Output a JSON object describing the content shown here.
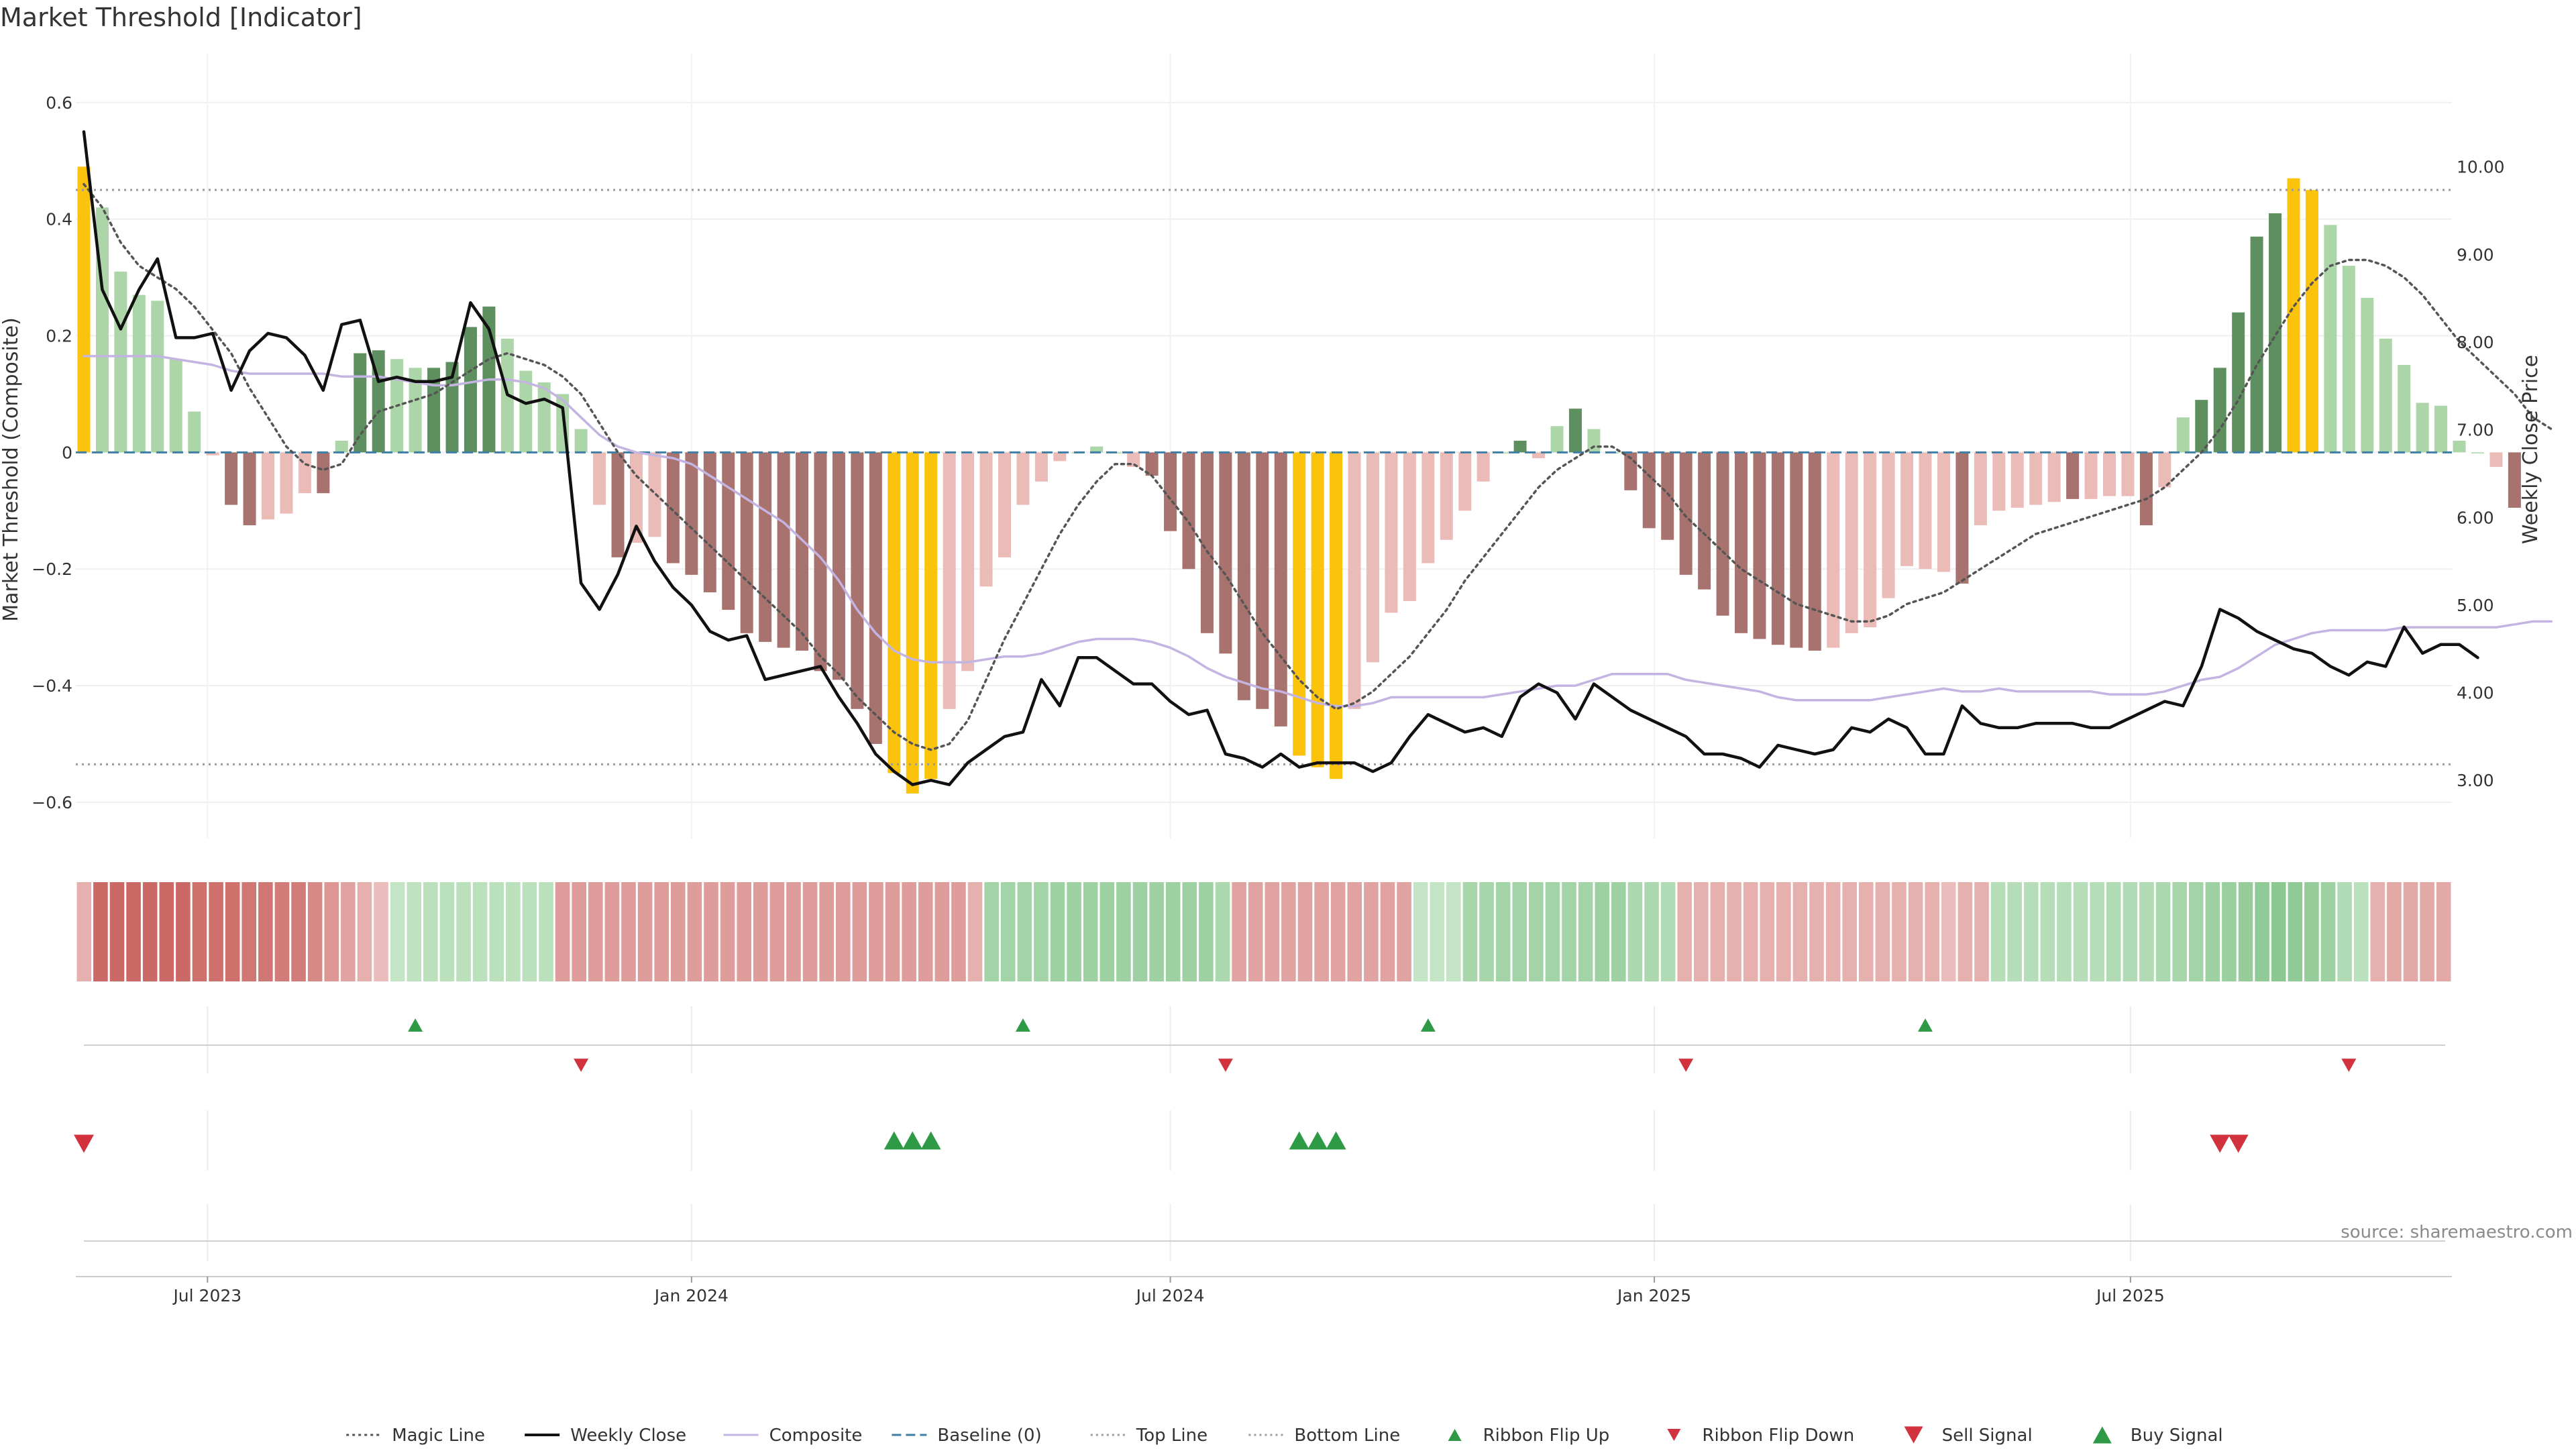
{
  "title": "Market Threshold [Indicator]",
  "source": "source: sharemaestro.com",
  "colors": {
    "bar_strong_up": "#5e8f5e",
    "bar_weak_up": "#acd6a8",
    "bar_strong_down": "#a8736f",
    "bar_weak_down": "#ebbbb8",
    "bar_extreme": "#fbc30c",
    "weekly_close": "#111111",
    "magic_line": "#555555",
    "composite": "#c3b4e1",
    "baseline": "#3f7fa6",
    "threshold_lines": "#9a9a9a",
    "signal_up": "#2e9a45",
    "signal_down": "#d2323d"
  },
  "chart_data": {
    "type": "bar",
    "x_start": "2023-05-15",
    "x_step_days": 7,
    "x_ticks": [
      "Jul 2023",
      "Jan 2024",
      "Jul 2024",
      "Jan 2025",
      "Jul 2025"
    ],
    "x_tick_dates": [
      "2023-07-01",
      "2024-01-01",
      "2024-07-01",
      "2025-01-01",
      "2025-07-01"
    ],
    "ylabel": "Market Threshold (Composite)",
    "y2label": "Weekly Close Price",
    "ylim": [
      -0.63,
      0.64
    ],
    "y2lim": [
      2.55,
      11.0
    ],
    "y_ticks": [
      -0.6,
      -0.4,
      -0.2,
      0,
      0.2,
      0.4,
      0.6
    ],
    "y_tick_labels": [
      "−0.6",
      "−0.4",
      "−0.2",
      "0",
      "0.2",
      "0.4",
      "0.6"
    ],
    "y2_ticks": [
      3,
      4,
      5,
      6,
      7,
      8,
      9,
      10
    ],
    "y2_tick_labels": [
      "3.00",
      "4.00",
      "5.00",
      "6.00",
      "7.00",
      "8.00",
      "9.00",
      "10.00"
    ],
    "top_line": 0.45,
    "bottom_line": -0.535,
    "baseline": 0,
    "grid": true,
    "bars": {
      "values": [
        0.49,
        0.42,
        0.31,
        0.27,
        0.26,
        0.16,
        0.07,
        -0.005,
        -0.09,
        -0.125,
        -0.115,
        -0.105,
        -0.07,
        -0.07,
        0.02,
        0.17,
        0.175,
        0.16,
        0.145,
        0.145,
        0.155,
        0.215,
        0.25,
        0.195,
        0.14,
        0.12,
        0.1,
        0.04,
        -0.09,
        -0.18,
        -0.155,
        -0.145,
        -0.19,
        -0.21,
        -0.24,
        -0.27,
        -0.31,
        -0.325,
        -0.335,
        -0.34,
        -0.375,
        -0.39,
        -0.44,
        -0.5,
        -0.55,
        -0.585,
        -0.56,
        -0.44,
        -0.375,
        -0.23,
        -0.18,
        -0.09,
        -0.05,
        -0.015,
        0,
        0.01,
        0,
        -0.025,
        -0.04,
        -0.135,
        -0.2,
        -0.31,
        -0.345,
        -0.425,
        -0.44,
        -0.47,
        -0.52,
        -0.54,
        -0.56,
        -0.44,
        -0.36,
        -0.275,
        -0.255,
        -0.19,
        -0.15,
        -0.1,
        -0.05,
        0,
        0.02,
        -0.01,
        0.045,
        0.075,
        0.04,
        0,
        -0.065,
        -0.13,
        -0.15,
        -0.21,
        -0.235,
        -0.28,
        -0.31,
        -0.32,
        -0.33,
        -0.335,
        -0.34,
        -0.335,
        -0.31,
        -0.3,
        -0.25,
        -0.195,
        -0.2,
        -0.205,
        -0.225,
        -0.125,
        -0.1,
        -0.095,
        -0.09,
        -0.085,
        -0.08,
        -0.08,
        -0.075,
        -0.075,
        -0.125,
        -0.06,
        0.06,
        0.09,
        0.145,
        0.24,
        0.37,
        0.41,
        0.47,
        0.45,
        0.39,
        0.32,
        0.265,
        0.195,
        0.15,
        0.085,
        0.08,
        0.02,
        0,
        -0.025,
        -0.095
      ],
      "colors": [
        "extreme",
        "weak_up",
        "weak_up",
        "weak_up",
        "weak_up",
        "weak_up",
        "weak_up",
        "weak_down",
        "strong_down",
        "strong_down",
        "weak_down",
        "weak_down",
        "weak_down",
        "strong_down",
        "weak_up",
        "strong_up",
        "strong_up",
        "weak_up",
        "weak_up",
        "strong_up",
        "strong_up",
        "strong_up",
        "strong_up",
        "weak_up",
        "weak_up",
        "weak_up",
        "weak_up",
        "weak_up",
        "weak_down",
        "strong_down",
        "weak_down",
        "weak_down",
        "strong_down",
        "strong_down",
        "strong_down",
        "strong_down",
        "strong_down",
        "strong_down",
        "strong_down",
        "strong_down",
        "strong_down",
        "strong_down",
        "strong_down",
        "strong_down",
        "extreme",
        "extreme",
        "extreme",
        "weak_down",
        "weak_down",
        "weak_down",
        "weak_down",
        "weak_down",
        "weak_down",
        "weak_down",
        "weak_up",
        "weak_up",
        "weak_up",
        "weak_down",
        "strong_down",
        "strong_down",
        "strong_down",
        "strong_down",
        "strong_down",
        "strong_down",
        "strong_down",
        "strong_down",
        "extreme",
        "extreme",
        "extreme",
        "weak_down",
        "weak_down",
        "weak_down",
        "weak_down",
        "weak_down",
        "weak_down",
        "weak_down",
        "weak_down",
        "weak_up",
        "strong_up",
        "weak_down",
        "weak_up",
        "strong_up",
        "weak_up",
        "weak_up",
        "strong_down",
        "strong_down",
        "strong_down",
        "strong_down",
        "strong_down",
        "strong_down",
        "strong_down",
        "strong_down",
        "strong_down",
        "strong_down",
        "strong_down",
        "weak_down",
        "weak_down",
        "weak_down",
        "weak_down",
        "weak_down",
        "weak_down",
        "weak_down",
        "strong_down",
        "weak_down",
        "weak_down",
        "weak_down",
        "weak_down",
        "weak_down",
        "strong_down",
        "weak_down",
        "weak_down",
        "weak_down",
        "strong_down",
        "weak_down",
        "weak_up",
        "strong_up",
        "strong_up",
        "strong_up",
        "strong_up",
        "strong_up",
        "extreme",
        "extreme",
        "weak_up",
        "weak_up",
        "weak_up",
        "weak_up",
        "weak_up",
        "weak_up",
        "weak_up",
        "weak_up",
        "weak_up",
        "weak_down",
        "strong_down"
      ]
    },
    "series": [
      {
        "name": "Weekly Close",
        "axis": "right",
        "style": "solid",
        "values": [
          10.4,
          8.6,
          8.15,
          8.6,
          8.95,
          8.05,
          8.05,
          8.1,
          7.45,
          7.9,
          8.1,
          8.05,
          7.85,
          7.45,
          8.2,
          8.25,
          7.55,
          7.6,
          7.55,
          7.55,
          7.6,
          8.45,
          8.15,
          7.4,
          7.3,
          7.35,
          7.25,
          5.25,
          4.95,
          5.35,
          5.9,
          5.5,
          5.2,
          5.0,
          4.7,
          4.6,
          4.65,
          4.15,
          4.2,
          4.25,
          4.3,
          3.95,
          3.65,
          3.3,
          3.1,
          2.95,
          3.0,
          2.95,
          3.2,
          3.35,
          3.5,
          3.55,
          4.15,
          3.85,
          4.4,
          4.4,
          4.25,
          4.1,
          4.1,
          3.9,
          3.75,
          3.8,
          3.3,
          3.25,
          3.15,
          3.3,
          3.15,
          3.2,
          3.2,
          3.2,
          3.1,
          3.2,
          3.5,
          3.75,
          3.65,
          3.55,
          3.6,
          3.5,
          3.95,
          4.1,
          4.0,
          3.7,
          4.1,
          3.95,
          3.8,
          3.7,
          3.6,
          3.5,
          3.3,
          3.3,
          3.25,
          3.15,
          3.4,
          3.35,
          3.3,
          3.35,
          3.6,
          3.55,
          3.7,
          3.6,
          3.3,
          3.3,
          3.85,
          3.65,
          3.6,
          3.6,
          3.65,
          3.65,
          3.65,
          3.6,
          3.6,
          3.7,
          3.8,
          3.9,
          3.85,
          4.3,
          4.95,
          4.85,
          4.7,
          4.6,
          4.5,
          4.45,
          4.3,
          4.2,
          4.35,
          4.3,
          4.75,
          4.45,
          4.55,
          4.55,
          4.4
        ]
      },
      {
        "name": "Magic Line",
        "axis": "left",
        "style": "dotted",
        "values": [
          0.46,
          0.42,
          0.36,
          0.32,
          0.3,
          0.28,
          0.25,
          0.21,
          0.17,
          0.11,
          0.06,
          0.01,
          -0.02,
          -0.03,
          -0.02,
          0.03,
          0.07,
          0.08,
          0.09,
          0.1,
          0.12,
          0.14,
          0.16,
          0.17,
          0.16,
          0.15,
          0.13,
          0.1,
          0.05,
          0.0,
          -0.04,
          -0.07,
          -0.1,
          -0.13,
          -0.16,
          -0.19,
          -0.22,
          -0.25,
          -0.28,
          -0.31,
          -0.35,
          -0.38,
          -0.42,
          -0.45,
          -0.48,
          -0.5,
          -0.51,
          -0.5,
          -0.46,
          -0.39,
          -0.32,
          -0.26,
          -0.2,
          -0.14,
          -0.09,
          -0.05,
          -0.02,
          -0.02,
          -0.04,
          -0.08,
          -0.12,
          -0.17,
          -0.21,
          -0.26,
          -0.31,
          -0.35,
          -0.39,
          -0.42,
          -0.44,
          -0.43,
          -0.41,
          -0.38,
          -0.35,
          -0.31,
          -0.27,
          -0.22,
          -0.18,
          -0.14,
          -0.1,
          -0.06,
          -0.03,
          -0.01,
          0.01,
          0.01,
          -0.01,
          -0.04,
          -0.07,
          -0.11,
          -0.14,
          -0.17,
          -0.2,
          -0.22,
          -0.24,
          -0.26,
          -0.27,
          -0.28,
          -0.29,
          -0.29,
          -0.28,
          -0.26,
          -0.25,
          -0.24,
          -0.22,
          -0.2,
          -0.18,
          -0.16,
          -0.14,
          -0.13,
          -0.12,
          -0.11,
          -0.1,
          -0.09,
          -0.08,
          -0.06,
          -0.03,
          0.0,
          0.04,
          0.09,
          0.15,
          0.2,
          0.25,
          0.29,
          0.32,
          0.33,
          0.33,
          0.32,
          0.3,
          0.27,
          0.23,
          0.19,
          0.16,
          0.13,
          0.1,
          0.06,
          0.04
        ]
      },
      {
        "name": "Composite",
        "axis": "left",
        "style": "solid",
        "values": [
          0.165,
          0.165,
          0.165,
          0.165,
          0.165,
          0.16,
          0.155,
          0.15,
          0.14,
          0.135,
          0.135,
          0.135,
          0.135,
          0.135,
          0.13,
          0.13,
          0.13,
          0.125,
          0.12,
          0.115,
          0.115,
          0.12,
          0.125,
          0.125,
          0.12,
          0.11,
          0.09,
          0.06,
          0.03,
          0.01,
          0.0,
          -0.005,
          -0.01,
          -0.02,
          -0.04,
          -0.06,
          -0.08,
          -0.1,
          -0.12,
          -0.15,
          -0.18,
          -0.22,
          -0.27,
          -0.31,
          -0.34,
          -0.355,
          -0.36,
          -0.36,
          -0.36,
          -0.355,
          -0.35,
          -0.35,
          -0.345,
          -0.335,
          -0.325,
          -0.32,
          -0.32,
          -0.32,
          -0.325,
          -0.335,
          -0.35,
          -0.37,
          -0.385,
          -0.395,
          -0.405,
          -0.41,
          -0.42,
          -0.43,
          -0.435,
          -0.435,
          -0.43,
          -0.42,
          -0.42,
          -0.42,
          -0.42,
          -0.42,
          -0.42,
          -0.415,
          -0.41,
          -0.405,
          -0.4,
          -0.4,
          -0.39,
          -0.38,
          -0.38,
          -0.38,
          -0.38,
          -0.39,
          -0.395,
          -0.4,
          -0.405,
          -0.41,
          -0.42,
          -0.425,
          -0.425,
          -0.425,
          -0.425,
          -0.425,
          -0.42,
          -0.415,
          -0.41,
          -0.405,
          -0.41,
          -0.41,
          -0.405,
          -0.41,
          -0.41,
          -0.41,
          -0.41,
          -0.41,
          -0.415,
          -0.415,
          -0.415,
          -0.41,
          -0.4,
          -0.39,
          -0.385,
          -0.37,
          -0.35,
          -0.33,
          -0.32,
          -0.31,
          -0.305,
          -0.305,
          -0.305,
          -0.305,
          -0.3,
          -0.3,
          -0.3,
          -0.3,
          -0.3,
          -0.3,
          -0.295,
          -0.29,
          -0.29
        ]
      }
    ],
    "ribbon": {
      "values": [
        -0.3,
        -0.85,
        -0.85,
        -0.85,
        -0.85,
        -0.85,
        -0.85,
        -0.8,
        -0.8,
        -0.8,
        -0.75,
        -0.75,
        -0.7,
        -0.7,
        -0.6,
        -0.5,
        -0.4,
        -0.3,
        -0.2,
        0.2,
        0.25,
        0.3,
        0.3,
        0.3,
        0.3,
        0.3,
        0.3,
        0.3,
        0.3,
        -0.45,
        -0.45,
        -0.45,
        -0.45,
        -0.45,
        -0.45,
        -0.45,
        -0.45,
        -0.45,
        -0.45,
        -0.45,
        -0.45,
        -0.45,
        -0.45,
        -0.45,
        -0.45,
        -0.45,
        -0.45,
        -0.45,
        -0.45,
        -0.45,
        -0.45,
        -0.45,
        -0.45,
        -0.45,
        -0.3,
        0.55,
        0.55,
        0.55,
        0.55,
        0.6,
        0.6,
        0.6,
        0.6,
        0.6,
        0.6,
        0.6,
        0.6,
        0.6,
        0.6,
        0.45,
        -0.4,
        -0.4,
        -0.4,
        -0.4,
        -0.4,
        -0.4,
        -0.4,
        -0.4,
        -0.4,
        -0.4,
        -0.4,
        0.2,
        0.2,
        0.2,
        0.5,
        0.5,
        0.55,
        0.55,
        0.55,
        0.55,
        0.55,
        0.55,
        0.6,
        0.6,
        0.45,
        0.45,
        0.4,
        -0.3,
        -0.3,
        -0.3,
        -0.3,
        -0.3,
        -0.3,
        -0.3,
        -0.3,
        -0.3,
        -0.3,
        -0.3,
        -0.3,
        -0.3,
        -0.3,
        -0.3,
        -0.3,
        -0.2,
        -0.3,
        -0.3,
        0.35,
        0.35,
        0.35,
        0.35,
        0.35,
        0.35,
        0.35,
        0.4,
        0.4,
        0.4,
        0.45,
        0.5,
        0.55,
        0.6,
        0.65,
        0.7,
        0.75,
        0.8,
        0.75,
        0.7,
        0.6,
        0.4,
        0.3,
        -0.3,
        -0.35,
        -0.35,
        -0.35,
        -0.35
      ]
    },
    "signals": {
      "ribbon_flip_up": [
        18,
        51,
        73,
        100
      ],
      "ribbon_flip_down": [
        27,
        62,
        87,
        123
      ],
      "sell_signal": [
        0,
        116,
        117
      ],
      "buy_signal": [
        44,
        45,
        46,
        66,
        67,
        68
      ]
    },
    "legend_placement": "bottom-center",
    "legend": [
      "Magic Line",
      "Weekly Close",
      "Composite",
      "Baseline (0)",
      "Top Line",
      "Bottom Line",
      "Ribbon Flip Up",
      "Ribbon Flip Down",
      "Sell Signal",
      "Buy Signal"
    ]
  }
}
